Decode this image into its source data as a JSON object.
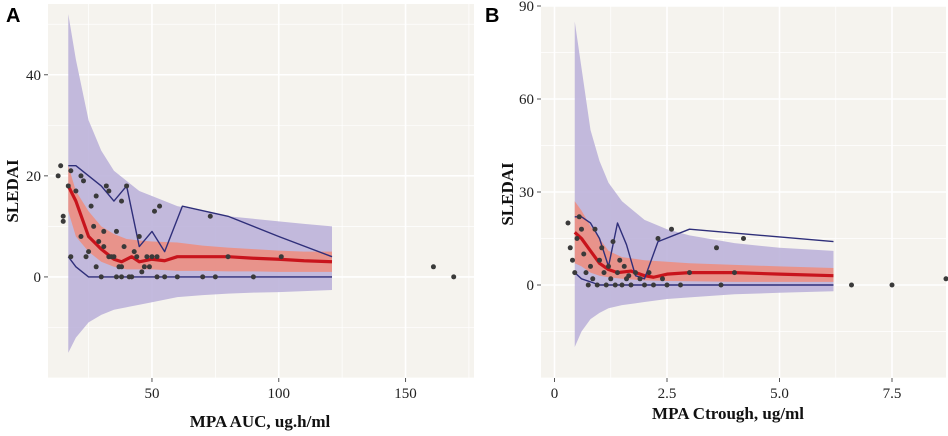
{
  "chart_data": [
    {
      "panel_label": "A",
      "type": "line",
      "title": "",
      "xlabel": "MPA AUC, ug.h/ml",
      "ylabel": "SLEDAI",
      "xlim": [
        9,
        177
      ],
      "ylim": [
        -20,
        54
      ],
      "xticks": [
        50,
        100,
        150
      ],
      "yticks": [
        0,
        20,
        40
      ],
      "grid": true,
      "colors": {
        "panel_bg": "#f5f3ee",
        "grid": "#ffffff",
        "outer_band": "#b9aed8",
        "inner_band": "#ef8c7c",
        "median": "#c8141c",
        "observed": "#2f2f7a",
        "points": "#3a3a3a"
      },
      "series": [
        {
          "name": "outer prediction interval",
          "kind": "band",
          "x": [
            17,
            20,
            25,
            30,
            35,
            40,
            45,
            50,
            60,
            70,
            80,
            90,
            100,
            110,
            121
          ],
          "upper": [
            52,
            43,
            31,
            25,
            21,
            19,
            17,
            16,
            14,
            13,
            12,
            11.5,
            11,
            10.5,
            10
          ],
          "lower": [
            -15,
            -12,
            -9,
            -7.5,
            -6.5,
            -6,
            -5.5,
            -5,
            -4,
            -3.6,
            -3.3,
            -3.1,
            -3,
            -2.8,
            -2.6
          ]
        },
        {
          "name": "median prediction interval",
          "kind": "band",
          "x": [
            17,
            20,
            25,
            30,
            35,
            40,
            45,
            50,
            60,
            70,
            80,
            90,
            100,
            110,
            121
          ],
          "upper": [
            22,
            17,
            13,
            10,
            8.5,
            7.5,
            7.2,
            7,
            6.8,
            6.2,
            5.8,
            5.5,
            5.2,
            5,
            5
          ],
          "lower": [
            13,
            8,
            5,
            3,
            2,
            1.5,
            1.5,
            1.5,
            1.2,
            1.2,
            1.1,
            1.1,
            1,
            1,
            1
          ]
        },
        {
          "name": "predicted median",
          "kind": "line",
          "x": [
            17,
            20,
            25,
            30,
            35,
            38,
            42,
            45,
            50,
            55,
            60,
            70,
            80,
            90,
            100,
            110,
            121
          ],
          "y": [
            18,
            15,
            8,
            5.5,
            3.5,
            3,
            4,
            3,
            3.5,
            3.2,
            4,
            4,
            4,
            3.7,
            3.5,
            3.2,
            3
          ]
        },
        {
          "name": "observed 95th percentile",
          "kind": "line",
          "x": [
            17,
            20,
            25,
            30,
            35,
            40,
            45,
            50,
            55,
            62,
            80,
            100,
            121
          ],
          "y": [
            22,
            22,
            20,
            18,
            15,
            18,
            6,
            9,
            5,
            14,
            12,
            8,
            4
          ]
        },
        {
          "name": "observed 5th percentile",
          "kind": "line",
          "x": [
            17,
            20,
            25,
            30,
            40,
            50,
            60,
            80,
            100,
            121
          ],
          "y": [
            4,
            2,
            0,
            0,
            0,
            0,
            0,
            0,
            0,
            0
          ]
        },
        {
          "name": "observed data",
          "kind": "scatter",
          "x": [
            13,
            14,
            15,
            15,
            17,
            18,
            18,
            20,
            22,
            22,
            23,
            24,
            25,
            26,
            27,
            28,
            28,
            29,
            30,
            31,
            31,
            32,
            33,
            33,
            34,
            35,
            36,
            36,
            37,
            38,
            38,
            38,
            39,
            40,
            41,
            42,
            43,
            44,
            45,
            46,
            47,
            48,
            49,
            50,
            51,
            52,
            52,
            53,
            55,
            60,
            70,
            73,
            75,
            80,
            90,
            101,
            161,
            169
          ],
          "y": [
            20,
            22,
            12,
            11,
            18,
            4,
            21,
            17,
            20,
            8,
            19,
            4,
            5,
            14,
            10,
            2,
            16,
            7,
            0,
            9,
            6,
            18,
            4,
            17,
            4,
            4,
            9,
            0,
            2,
            0,
            2,
            15,
            6,
            18,
            0,
            0,
            5,
            4,
            8,
            1,
            2,
            4,
            2,
            4,
            13,
            0,
            4,
            14,
            0,
            0,
            0,
            12,
            0,
            4,
            0,
            4,
            2,
            0
          ]
        }
      ]
    },
    {
      "panel_label": "B",
      "type": "line",
      "title": "",
      "xlabel": "MPA Ctrough, ug/ml",
      "ylabel": "SLEDAI",
      "xlim": [
        -0.3,
        8.7
      ],
      "ylim": [
        -30,
        90
      ],
      "xticks": [
        0,
        2.5,
        5.0,
        7.5
      ],
      "yticks": [
        0,
        30,
        60,
        90
      ],
      "grid": true,
      "colors": {
        "panel_bg": "#f5f3ee",
        "grid": "#ffffff",
        "outer_band": "#b9aed8",
        "inner_band": "#ef8c7c",
        "median": "#c8141c",
        "observed": "#2f2f7a",
        "points": "#3a3a3a"
      },
      "series": [
        {
          "name": "outer prediction interval",
          "kind": "band",
          "x": [
            0.45,
            0.6,
            0.8,
            1.0,
            1.2,
            1.5,
            2.0,
            2.5,
            3.0,
            4.0,
            5.0,
            6.2
          ],
          "upper": [
            85,
            70,
            50,
            40,
            33,
            27,
            21,
            18,
            16,
            13.5,
            12,
            11
          ],
          "lower": [
            -20,
            -15,
            -11,
            -9,
            -7.5,
            -6.5,
            -5.5,
            -4.5,
            -4,
            -3,
            -2.5,
            -2
          ]
        },
        {
          "name": "median prediction interval",
          "kind": "band",
          "x": [
            0.45,
            0.6,
            0.8,
            1.0,
            1.2,
            1.5,
            2.0,
            2.5,
            3.0,
            4.0,
            5.0,
            6.2
          ],
          "upper": [
            27,
            24,
            19,
            15,
            11,
            9,
            8,
            7.5,
            7,
            6.5,
            6,
            5.5
          ],
          "lower": [
            7,
            6,
            4,
            3,
            2.5,
            2,
            1.5,
            1.3,
            1.2,
            1,
            1,
            1
          ]
        },
        {
          "name": "predicted median",
          "kind": "line",
          "x": [
            0.45,
            0.6,
            0.8,
            1.0,
            1.2,
            1.4,
            1.7,
            2.0,
            2.2,
            2.5,
            3.0,
            4.0,
            5.0,
            6.2
          ],
          "y": [
            17,
            15,
            11,
            7,
            5,
            4,
            4.5,
            3,
            2.5,
            3.5,
            4,
            4,
            3.5,
            3
          ]
        },
        {
          "name": "observed 95th percentile",
          "kind": "line",
          "x": [
            0.45,
            0.6,
            0.8,
            1.0,
            1.2,
            1.4,
            1.6,
            1.8,
            2.0,
            2.3,
            3.0,
            6.2
          ],
          "y": [
            22,
            22,
            20,
            15,
            6,
            20,
            13,
            3,
            2,
            14,
            18,
            14
          ]
        },
        {
          "name": "observed 5th percentile",
          "kind": "line",
          "x": [
            0.45,
            0.6,
            0.8,
            1.0,
            1.5,
            2.0,
            3.0,
            6.2
          ],
          "y": [
            4,
            2,
            1,
            0,
            0,
            0,
            0,
            0
          ]
        },
        {
          "name": "observed data",
          "kind": "scatter",
          "x": [
            0.3,
            0.35,
            0.4,
            0.45,
            0.5,
            0.55,
            0.6,
            0.65,
            0.7,
            0.75,
            0.8,
            0.85,
            0.9,
            0.95,
            1.0,
            1.05,
            1.1,
            1.15,
            1.2,
            1.25,
            1.3,
            1.35,
            1.4,
            1.45,
            1.5,
            1.55,
            1.6,
            1.65,
            1.7,
            1.8,
            1.9,
            2.0,
            2.1,
            2.2,
            2.3,
            2.4,
            2.5,
            2.6,
            2.8,
            3.0,
            3.6,
            3.7,
            4.0,
            4.2,
            6.6,
            7.5,
            8.7
          ],
          "y": [
            20,
            12,
            8,
            4,
            15,
            22,
            18,
            10,
            4,
            0,
            6,
            2,
            18,
            0,
            8,
            12,
            4,
            0,
            6,
            2,
            14,
            0,
            4,
            8,
            0,
            6,
            2,
            3,
            0,
            4,
            2,
            0,
            4,
            0,
            15,
            2,
            0,
            18,
            0,
            4,
            12,
            0,
            4,
            15,
            0,
            0,
            2
          ]
        }
      ]
    }
  ]
}
